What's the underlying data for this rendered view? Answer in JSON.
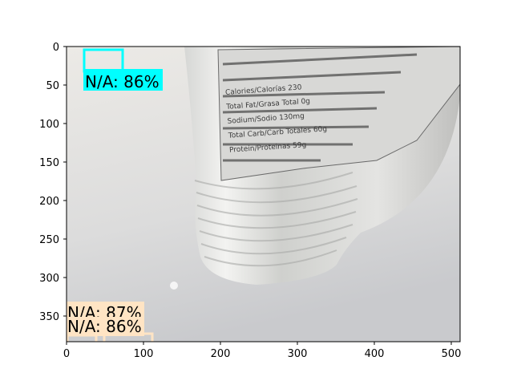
{
  "image": {
    "description_colors": {
      "background_top": "#e9e7e4",
      "background_bottom": "#cfd0d2",
      "bottle_highlight": "#f2f2f0",
      "label_dark": "#5a5a5a"
    }
  },
  "axes": {
    "x_ticks": [
      "0",
      "100",
      "200",
      "300",
      "400",
      "500"
    ],
    "y_ticks": [
      "0",
      "50",
      "100",
      "150",
      "200",
      "250",
      "300",
      "350"
    ]
  },
  "detections": [
    {
      "label": "N/A: 86%",
      "color": "#00ffff"
    },
    {
      "label": "N/A: 87%",
      "color": "#ffe4c4"
    },
    {
      "label": "N/A: 86%",
      "color": "#ffe4c4"
    }
  ],
  "bottle_label_lines": [
    "Total Fat/Grasa Total 0g",
    "Sodium/Sodio 130mg",
    "Total Carb/Carb Totales 60g",
    "Protein/Proteinas 59g",
    "Calories/Calorías 230"
  ]
}
